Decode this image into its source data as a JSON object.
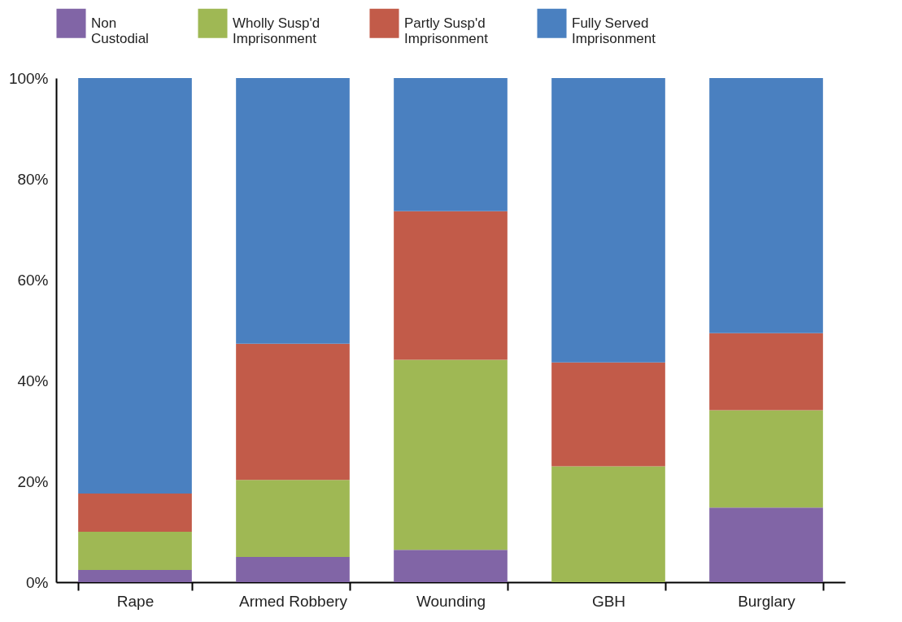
{
  "chart_data": {
    "type": "bar",
    "stacked": true,
    "categories": [
      "Rape",
      "Armed Robbery",
      "Wounding",
      "GBH",
      "Burglary"
    ],
    "series": [
      {
        "name": "Non Custodial",
        "color": "#8165a6",
        "values": [
          2.4,
          5,
          6.4,
          0,
          14.8
        ]
      },
      {
        "name": "Wholly Susp'd Imprisonment",
        "color": "#9fb854",
        "values": [
          7.6,
          15.3,
          37.7,
          23,
          19.3
        ]
      },
      {
        "name": "Partly Susp'd Imprisonment",
        "color": "#c25b49",
        "values": [
          7.6,
          27,
          29.5,
          20.6,
          15.3
        ]
      },
      {
        "name": "Fully Served Imprisonment",
        "color": "#4a80c0",
        "values": [
          82.4,
          52.7,
          26.4,
          56.4,
          50.6
        ]
      }
    ],
    "ylim": [
      0,
      100
    ],
    "yticks": [
      {
        "value": 0,
        "label": "0%"
      },
      {
        "value": 20,
        "label": "20%"
      },
      {
        "value": 40,
        "label": "40%"
      },
      {
        "value": 60,
        "label": "60%"
      },
      {
        "value": 80,
        "label": "80%"
      },
      {
        "value": 100,
        "label": "100%"
      }
    ],
    "grid": false,
    "legend": "top"
  }
}
